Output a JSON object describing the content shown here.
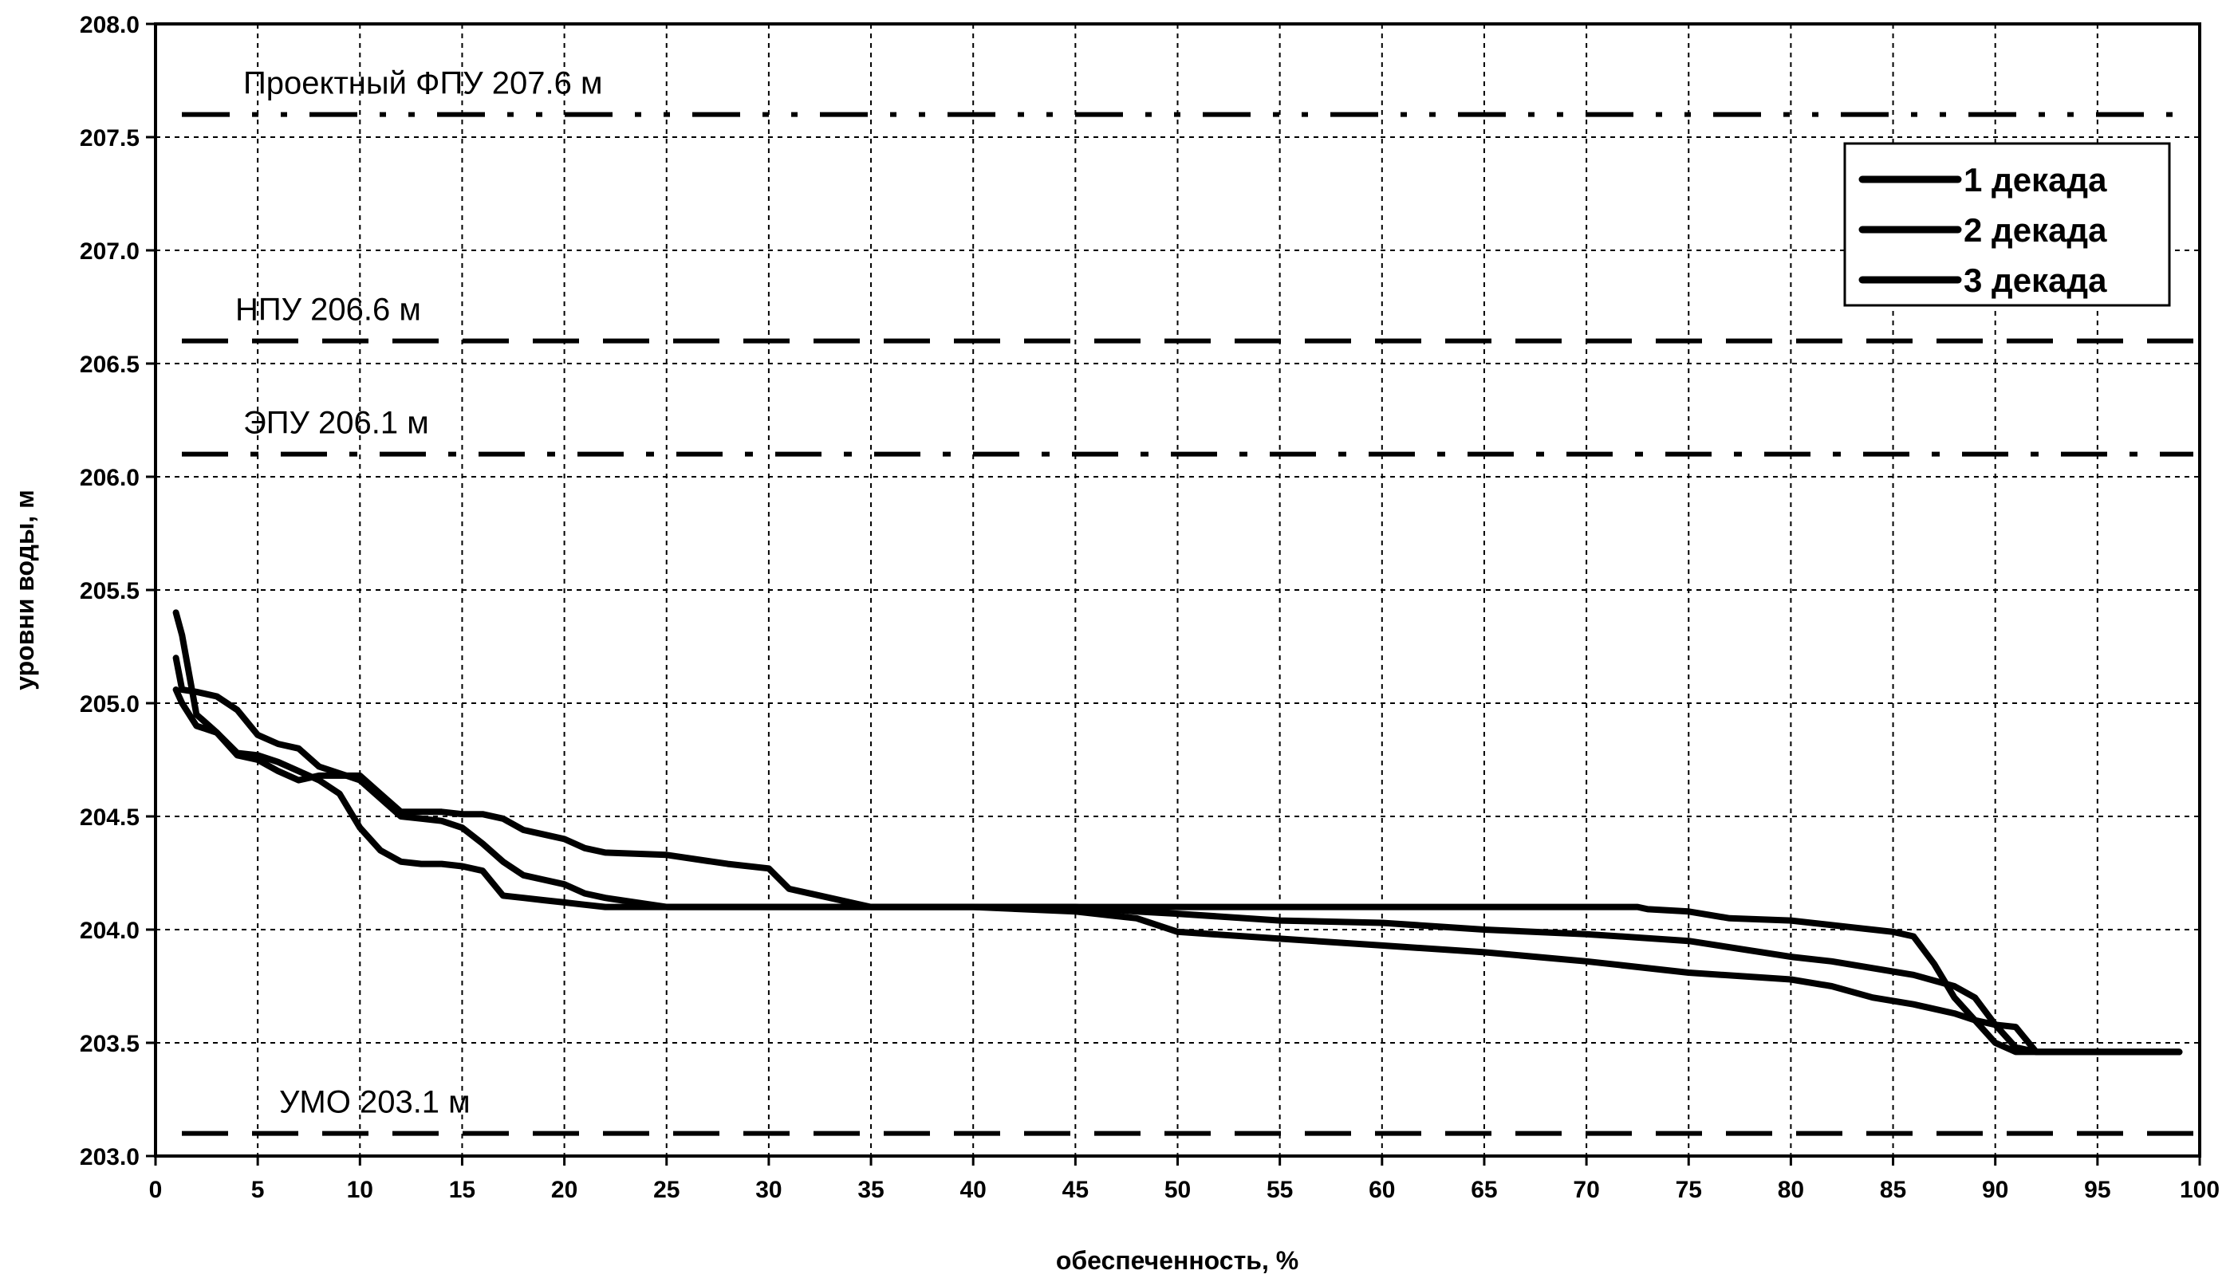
{
  "chart_data": {
    "type": "line",
    "title": "",
    "xlabel": "обеспеченность, %",
    "ylabel": "уровни воды, м",
    "xlim": [
      0,
      100
    ],
    "ylim": [
      203.0,
      208.0
    ],
    "x_ticks": [
      "0",
      "5",
      "10",
      "15",
      "20",
      "25",
      "30",
      "35",
      "40",
      "45",
      "50",
      "55",
      "60",
      "65",
      "70",
      "75",
      "80",
      "85",
      "90",
      "95",
      "100"
    ],
    "y_ticks": [
      "203.0",
      "203.5",
      "204.0",
      "204.5",
      "205.0",
      "205.5",
      "206.0",
      "206.5",
      "207.0",
      "207.5",
      "208.0"
    ],
    "grid": true,
    "legend_position": "top-right",
    "reference_lines": [
      {
        "label": "Проектный ФПУ 207.6 м",
        "y": 207.6,
        "style": "dash-dot-dot"
      },
      {
        "label": "НПУ 206.6 м",
        "y": 206.6,
        "style": "dash"
      },
      {
        "label": "ЭПУ 206.1 м",
        "y": 206.1,
        "style": "dash-dot"
      },
      {
        "label": "УМО 203.1 м",
        "y": 203.1,
        "style": "dash"
      }
    ],
    "series": [
      {
        "name": "1 декада",
        "x": [
          1.0,
          1.3,
          2,
          3,
          4,
          5,
          6,
          7,
          8,
          9,
          10,
          11,
          12,
          13,
          14,
          15,
          16,
          17,
          18,
          19,
          20,
          21,
          22,
          25,
          30,
          35,
          40,
          45,
          50,
          55,
          60,
          65,
          70,
          72.5,
          73,
          75,
          77,
          80,
          83,
          85,
          86,
          87,
          88,
          89,
          90,
          91,
          92,
          95,
          99
        ],
        "y": [
          205.4,
          205.3,
          204.95,
          204.87,
          204.78,
          204.77,
          204.74,
          204.7,
          204.66,
          204.6,
          204.45,
          204.35,
          204.3,
          204.29,
          204.29,
          204.28,
          204.26,
          204.15,
          204.14,
          204.13,
          204.12,
          204.11,
          204.1,
          204.1,
          204.1,
          204.1,
          204.1,
          204.1,
          204.1,
          204.1,
          204.1,
          204.1,
          204.1,
          204.1,
          204.09,
          204.08,
          204.05,
          204.04,
          204.01,
          203.99,
          203.97,
          203.85,
          203.7,
          203.6,
          203.5,
          203.46,
          203.46,
          203.46,
          203.46
        ]
      },
      {
        "name": "2 декада",
        "x": [
          1.0,
          1.3,
          2,
          3,
          4,
          5,
          6,
          7,
          8,
          9,
          10,
          11,
          12,
          13,
          14,
          15,
          16,
          17,
          18,
          19,
          20,
          21,
          22,
          25,
          30,
          35,
          40,
          45,
          48,
          50,
          55,
          60,
          65,
          70,
          75,
          80,
          82,
          84,
          86,
          88,
          89,
          90,
          91,
          92,
          95,
          99
        ],
        "y": [
          205.2,
          205.06,
          205.05,
          205.03,
          204.97,
          204.86,
          204.82,
          204.8,
          204.72,
          204.69,
          204.66,
          204.58,
          204.5,
          204.49,
          204.48,
          204.45,
          204.38,
          204.3,
          204.24,
          204.22,
          204.2,
          204.16,
          204.14,
          204.1,
          204.1,
          204.1,
          204.1,
          204.1,
          204.08,
          204.07,
          204.04,
          204.03,
          204.0,
          203.98,
          203.95,
          203.88,
          203.86,
          203.83,
          203.8,
          203.75,
          203.7,
          203.58,
          203.48,
          203.46,
          203.46,
          203.46
        ]
      },
      {
        "name": "3 декада",
        "x": [
          1.0,
          1.3,
          2,
          3,
          4,
          5,
          6,
          7,
          8,
          9,
          10,
          11,
          12,
          13,
          14,
          15,
          16,
          17,
          18,
          19,
          20,
          21,
          22,
          25,
          28,
          30,
          31,
          35,
          40,
          45,
          48,
          49,
          50,
          55,
          60,
          65,
          70,
          75,
          80,
          82,
          84,
          86,
          88,
          89,
          90,
          91,
          92,
          95,
          99
        ],
        "y": [
          205.06,
          205.0,
          204.9,
          204.87,
          204.77,
          204.75,
          204.7,
          204.66,
          204.68,
          204.68,
          204.68,
          204.6,
          204.52,
          204.52,
          204.52,
          204.51,
          204.51,
          204.49,
          204.44,
          204.42,
          204.4,
          204.36,
          204.34,
          204.33,
          204.29,
          204.27,
          204.18,
          204.1,
          204.1,
          204.08,
          204.05,
          204.02,
          203.99,
          203.96,
          203.93,
          203.9,
          203.86,
          203.81,
          203.78,
          203.75,
          203.7,
          203.67,
          203.63,
          203.6,
          203.58,
          203.57,
          203.46,
          203.46,
          203.46
        ]
      }
    ]
  }
}
